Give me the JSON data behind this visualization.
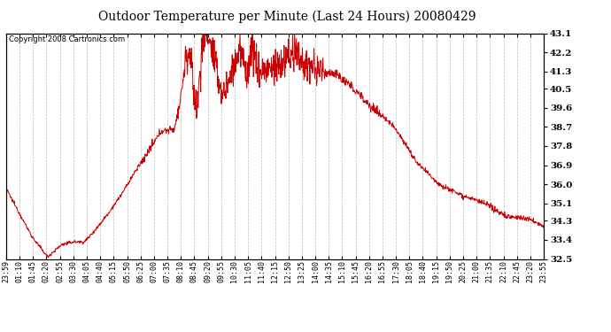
{
  "title": "Outdoor Temperature per Minute (Last 24 Hours) 20080429",
  "copyright_text": "Copyright 2008 Cartronics.com",
  "line_color": "#cc0000",
  "bg_color": "#ffffff",
  "grid_color": "#bbbbbb",
  "yticks": [
    32.5,
    33.4,
    34.3,
    35.1,
    36.0,
    36.9,
    37.8,
    38.7,
    39.6,
    40.5,
    41.3,
    42.2,
    43.1
  ],
  "xtick_labels": [
    "23:59",
    "01:10",
    "01:45",
    "02:20",
    "02:55",
    "03:30",
    "04:05",
    "04:40",
    "05:15",
    "05:50",
    "06:25",
    "07:00",
    "07:35",
    "08:10",
    "08:45",
    "09:20",
    "09:55",
    "10:30",
    "11:05",
    "11:40",
    "12:15",
    "12:50",
    "13:25",
    "14:00",
    "14:35",
    "15:10",
    "15:45",
    "16:20",
    "16:55",
    "17:30",
    "18:05",
    "18:40",
    "19:15",
    "19:50",
    "20:25",
    "21:00",
    "21:35",
    "22:10",
    "22:45",
    "23:20",
    "23:55"
  ],
  "keyframe_times": [
    0,
    40,
    71,
    111,
    151,
    156,
    180,
    210,
    245,
    280,
    315,
    345,
    380,
    415,
    450,
    465,
    480,
    490,
    510,
    525,
    540,
    560,
    580,
    600,
    625,
    645,
    660,
    675,
    700,
    720,
    745,
    770,
    800,
    840,
    880,
    930,
    980,
    1040,
    1100,
    1160,
    1220,
    1280,
    1340,
    1395,
    1420,
    1440
  ],
  "keyframe_temps": [
    35.8,
    34.5,
    33.5,
    32.6,
    33.2,
    33.2,
    33.3,
    33.3,
    34.0,
    34.8,
    35.7,
    36.6,
    37.5,
    38.5,
    38.6,
    39.8,
    41.8,
    42.2,
    39.4,
    42.5,
    43.1,
    41.5,
    40.2,
    41.0,
    42.3,
    41.2,
    42.5,
    41.3,
    41.4,
    41.4,
    41.8,
    42.2,
    41.6,
    41.3,
    41.2,
    40.5,
    39.6,
    38.7,
    37.0,
    36.0,
    35.5,
    35.1,
    34.5,
    34.4,
    34.2,
    34.0
  ]
}
